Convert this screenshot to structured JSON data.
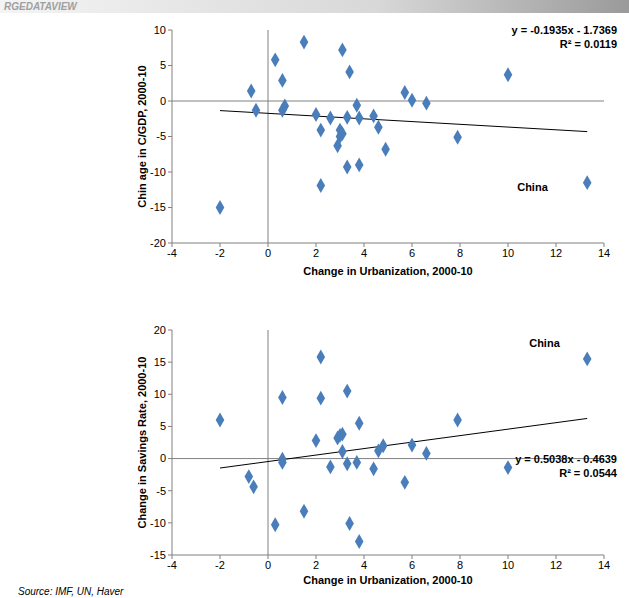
{
  "header": "RGEDATAVIEW",
  "source": "Source: IMF, UN, Haver",
  "chart_data": [
    {
      "type": "scatter",
      "xlabel": "Change in Urbanization,  2000-10",
      "ylabel": "Chin age in C/GDP, 2000-10",
      "xlim": [
        -4,
        14
      ],
      "xticks": [
        -4,
        -2,
        0,
        2,
        4,
        6,
        8,
        10,
        12,
        14
      ],
      "ylim": [
        -20,
        10
      ],
      "yticks": [
        -20,
        -15,
        -10,
        -5,
        0,
        5,
        10
      ],
      "grid": false,
      "series": [
        {
          "type": "scatter",
          "marker": "diamond",
          "color": "#4a7ebb",
          "x": [
            0.3,
            1.5,
            3.1,
            3.4,
            0.6,
            -0.7,
            -0.5,
            0.6,
            0.7,
            2.0,
            2.2,
            2.6,
            3.0,
            3.0,
            3.1,
            2.9,
            3.3,
            3.7,
            3.8,
            4.4,
            4.6,
            4.9,
            3.3,
            3.8,
            2.2,
            -2.0,
            5.7,
            6.0,
            6.6,
            7.9,
            10.0,
            13.3
          ],
          "values": [
            5.8,
            8.3,
            7.2,
            4.1,
            2.9,
            1.4,
            -1.3,
            -1.3,
            -0.7,
            -1.9,
            -4.1,
            -2.4,
            -4.1,
            -5.0,
            -4.6,
            -6.3,
            -2.3,
            -0.6,
            -2.4,
            -2.1,
            -3.7,
            -6.8,
            -9.3,
            -9.0,
            -11.9,
            -15.0,
            1.2,
            0.1,
            -0.3,
            -5.1,
            3.7,
            -11.5
          ]
        },
        {
          "type": "line",
          "color": "#000000",
          "x": [
            -2.0,
            13.3
          ],
          "values": [
            -1.35,
            -4.31
          ]
        }
      ],
      "annotations": [
        {
          "text": "China",
          "x": 13.3,
          "y": -11.5
        },
        {
          "text": "y = -0.1935x - 1.7369"
        },
        {
          "text": "R² = 0.0119"
        }
      ]
    },
    {
      "type": "scatter",
      "xlabel": "Change in Urbanization,  2000-10",
      "ylabel": "Change in Savings Rate, 2000-10",
      "xlim": [
        -4,
        14
      ],
      "xticks": [
        -4,
        -2,
        0,
        2,
        4,
        6,
        8,
        10,
        12,
        14
      ],
      "ylim": [
        -15,
        20
      ],
      "yticks": [
        -15,
        -10,
        -5,
        0,
        5,
        10,
        15,
        20
      ],
      "grid": false,
      "series": [
        {
          "type": "scatter",
          "marker": "diamond",
          "color": "#4a7ebb",
          "x": [
            -2.0,
            -0.8,
            -0.6,
            0.3,
            0.6,
            0.6,
            0.6,
            1.5,
            2.0,
            2.2,
            2.2,
            2.6,
            2.9,
            3.0,
            3.1,
            3.1,
            3.3,
            3.3,
            3.4,
            3.7,
            3.8,
            3.8,
            4.4,
            4.6,
            4.8,
            5.7,
            6.0,
            6.6,
            7.9,
            10.0,
            13.3
          ],
          "values": [
            6.0,
            -2.8,
            -4.4,
            -10.3,
            9.5,
            -0.6,
            -0.1,
            -8.2,
            2.8,
            15.8,
            9.4,
            -1.3,
            3.2,
            3.6,
            3.8,
            1.1,
            10.5,
            -0.8,
            -10.1,
            -0.6,
            5.5,
            -12.9,
            -1.6,
            1.2,
            2.0,
            -3.7,
            2.1,
            0.8,
            6.0,
            -1.4,
            15.5
          ]
        },
        {
          "type": "line",
          "color": "#000000",
          "x": [
            -2.0,
            13.3
          ],
          "values": [
            -1.47,
            6.24
          ]
        }
      ],
      "annotations": [
        {
          "text": "China",
          "x": 13.3,
          "y": 15.5
        },
        {
          "text": "y = 0.5038x - 0.4639"
        },
        {
          "text": "R² = 0.0544"
        }
      ]
    }
  ]
}
